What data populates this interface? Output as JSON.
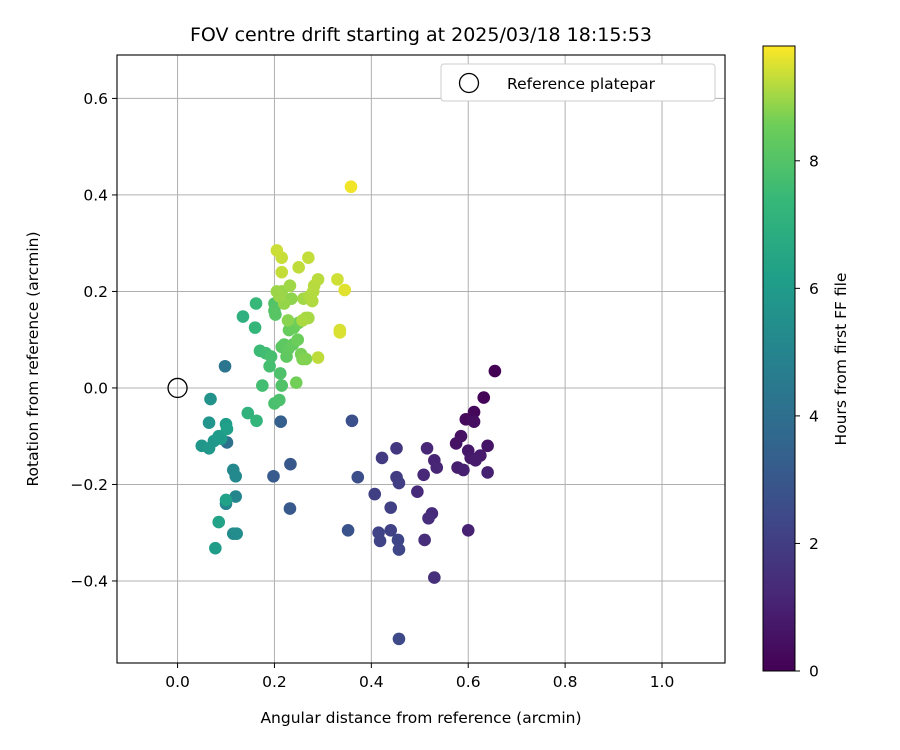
{
  "chart_data": {
    "type": "scatter",
    "title": "FOV centre drift starting at 2025/03/18 18:15:53",
    "xlabel": "Angular distance from reference (arcmin)",
    "ylabel": "Rotation from reference (arcmin)",
    "xlim": [
      -0.125,
      1.13
    ],
    "ylim": [
      -0.57,
      0.69
    ],
    "xticks": [
      0.0,
      0.2,
      0.4,
      0.6,
      0.8,
      1.0
    ],
    "xtick_labels": [
      "0.0",
      "0.2",
      "0.4",
      "0.6",
      "0.8",
      "1.0"
    ],
    "yticks": [
      -0.4,
      -0.2,
      0.0,
      0.2,
      0.4,
      0.6
    ],
    "ytick_labels": [
      "−0.4",
      "−0.2",
      "0.0",
      "0.2",
      "0.4",
      "0.6"
    ],
    "grid": true,
    "legend": {
      "position": "top-right",
      "entries": [
        "Reference platepar"
      ]
    },
    "reference_point": {
      "x": 0.0,
      "y": 0.0
    },
    "colorbar": {
      "label": "Hours from first FF file",
      "colormap": "viridis",
      "range": [
        0,
        9.8
      ],
      "ticks": [
        0,
        2,
        4,
        6,
        8
      ],
      "tick_labels": [
        "0",
        "2",
        "4",
        "6",
        "8"
      ]
    },
    "points": [
      {
        "x": 0.655,
        "y": 0.035,
        "h": 0.0
      },
      {
        "x": 0.632,
        "y": -0.02,
        "h": 0.1
      },
      {
        "x": 0.612,
        "y": -0.05,
        "h": 0.2
      },
      {
        "x": 0.595,
        "y": -0.065,
        "h": 0.3
      },
      {
        "x": 0.612,
        "y": -0.07,
        "h": 0.4
      },
      {
        "x": 0.585,
        "y": -0.1,
        "h": 0.5
      },
      {
        "x": 0.575,
        "y": -0.115,
        "h": 0.55
      },
      {
        "x": 0.64,
        "y": -0.12,
        "h": 0.6
      },
      {
        "x": 0.6,
        "y": -0.13,
        "h": 0.7
      },
      {
        "x": 0.605,
        "y": -0.145,
        "h": 0.75
      },
      {
        "x": 0.625,
        "y": -0.14,
        "h": 0.8
      },
      {
        "x": 0.615,
        "y": -0.15,
        "h": 0.85
      },
      {
        "x": 0.578,
        "y": -0.165,
        "h": 0.9
      },
      {
        "x": 0.59,
        "y": -0.17,
        "h": 0.95
      },
      {
        "x": 0.64,
        "y": -0.175,
        "h": 1.0
      },
      {
        "x": 0.6,
        "y": -0.295,
        "h": 1.05
      },
      {
        "x": 0.53,
        "y": -0.15,
        "h": 1.1
      },
      {
        "x": 0.535,
        "y": -0.165,
        "h": 1.15
      },
      {
        "x": 0.515,
        "y": -0.125,
        "h": 1.2
      },
      {
        "x": 0.508,
        "y": -0.18,
        "h": 1.25
      },
      {
        "x": 0.495,
        "y": -0.215,
        "h": 1.3
      },
      {
        "x": 0.525,
        "y": -0.26,
        "h": 1.35
      },
      {
        "x": 0.518,
        "y": -0.27,
        "h": 1.4
      },
      {
        "x": 0.51,
        "y": -0.315,
        "h": 1.45
      },
      {
        "x": 0.53,
        "y": -0.393,
        "h": 1.5
      },
      {
        "x": 0.452,
        "y": -0.125,
        "h": 1.8
      },
      {
        "x": 0.422,
        "y": -0.145,
        "h": 1.9
      },
      {
        "x": 0.452,
        "y": -0.185,
        "h": 1.95
      },
      {
        "x": 0.457,
        "y": -0.197,
        "h": 2.0
      },
      {
        "x": 0.407,
        "y": -0.22,
        "h": 2.05
      },
      {
        "x": 0.44,
        "y": -0.248,
        "h": 2.1
      },
      {
        "x": 0.44,
        "y": -0.295,
        "h": 2.15
      },
      {
        "x": 0.415,
        "y": -0.3,
        "h": 2.2
      },
      {
        "x": 0.418,
        "y": -0.317,
        "h": 2.25
      },
      {
        "x": 0.455,
        "y": -0.315,
        "h": 2.3
      },
      {
        "x": 0.457,
        "y": -0.335,
        "h": 2.35
      },
      {
        "x": 0.457,
        "y": -0.52,
        "h": 2.4
      },
      {
        "x": 0.372,
        "y": -0.185,
        "h": 2.6
      },
      {
        "x": 0.36,
        "y": -0.068,
        "h": 2.7
      },
      {
        "x": 0.352,
        "y": -0.295,
        "h": 2.8
      },
      {
        "x": 0.233,
        "y": -0.158,
        "h": 3.0
      },
      {
        "x": 0.232,
        "y": -0.25,
        "h": 3.05
      },
      {
        "x": 0.198,
        "y": -0.183,
        "h": 3.15
      },
      {
        "x": 0.213,
        "y": -0.07,
        "h": 3.3
      },
      {
        "x": 0.102,
        "y": -0.113,
        "h": 4.1
      },
      {
        "x": 0.098,
        "y": 0.045,
        "h": 4.3
      },
      {
        "x": 0.1,
        "y": -0.24,
        "h": 5.0
      },
      {
        "x": 0.12,
        "y": -0.225,
        "h": 5.05
      },
      {
        "x": 0.115,
        "y": -0.17,
        "h": 5.15
      },
      {
        "x": 0.12,
        "y": -0.183,
        "h": 5.2
      },
      {
        "x": 0.115,
        "y": -0.302,
        "h": 5.3
      },
      {
        "x": 0.122,
        "y": -0.302,
        "h": 5.35
      },
      {
        "x": 0.068,
        "y": -0.023,
        "h": 5.6
      },
      {
        "x": 0.065,
        "y": -0.072,
        "h": 5.7
      },
      {
        "x": 0.05,
        "y": -0.12,
        "h": 5.8
      },
      {
        "x": 0.065,
        "y": -0.125,
        "h": 5.85
      },
      {
        "x": 0.075,
        "y": -0.11,
        "h": 5.9
      },
      {
        "x": 0.085,
        "y": -0.1,
        "h": 6.0
      },
      {
        "x": 0.09,
        "y": -0.105,
        "h": 6.05
      },
      {
        "x": 0.1,
        "y": -0.075,
        "h": 6.1
      },
      {
        "x": 0.102,
        "y": -0.085,
        "h": 6.2
      },
      {
        "x": 0.1,
        "y": -0.232,
        "h": 6.25
      },
      {
        "x": 0.085,
        "y": -0.278,
        "h": 6.3
      },
      {
        "x": 0.078,
        "y": -0.332,
        "h": 6.1
      },
      {
        "x": 0.135,
        "y": 0.148,
        "h": 7.0
      },
      {
        "x": 0.145,
        "y": -0.052,
        "h": 7.1
      },
      {
        "x": 0.163,
        "y": -0.068,
        "h": 7.2
      },
      {
        "x": 0.16,
        "y": 0.125,
        "h": 7.3
      },
      {
        "x": 0.162,
        "y": 0.175,
        "h": 7.4
      },
      {
        "x": 0.17,
        "y": 0.077,
        "h": 7.5
      },
      {
        "x": 0.182,
        "y": 0.072,
        "h": 7.6
      },
      {
        "x": 0.175,
        "y": 0.005,
        "h": 7.65
      },
      {
        "x": 0.19,
        "y": 0.045,
        "h": 7.7
      },
      {
        "x": 0.193,
        "y": 0.065,
        "h": 7.75
      },
      {
        "x": 0.2,
        "y": -0.032,
        "h": 7.8
      },
      {
        "x": 0.21,
        "y": -0.025,
        "h": 7.85
      },
      {
        "x": 0.212,
        "y": 0.03,
        "h": 7.9
      },
      {
        "x": 0.215,
        "y": 0.005,
        "h": 7.95
      },
      {
        "x": 0.2,
        "y": 0.175,
        "h": 8.0
      },
      {
        "x": 0.2,
        "y": 0.16,
        "h": 8.05
      },
      {
        "x": 0.202,
        "y": 0.152,
        "h": 8.1
      },
      {
        "x": 0.215,
        "y": 0.085,
        "h": 8.15
      },
      {
        "x": 0.22,
        "y": 0.09,
        "h": 8.2
      },
      {
        "x": 0.225,
        "y": 0.065,
        "h": 8.25
      },
      {
        "x": 0.228,
        "y": 0.08,
        "h": 8.3
      },
      {
        "x": 0.238,
        "y": 0.09,
        "h": 8.35
      },
      {
        "x": 0.23,
        "y": 0.12,
        "h": 8.4
      },
      {
        "x": 0.24,
        "y": 0.125,
        "h": 8.45
      },
      {
        "x": 0.248,
        "y": 0.1,
        "h": 8.5
      },
      {
        "x": 0.25,
        "y": 0.135,
        "h": 8.55
      },
      {
        "x": 0.245,
        "y": 0.011,
        "h": 8.6
      },
      {
        "x": 0.255,
        "y": 0.07,
        "h": 8.65
      },
      {
        "x": 0.258,
        "y": 0.06,
        "h": 8.7
      },
      {
        "x": 0.265,
        "y": 0.06,
        "h": 8.75
      },
      {
        "x": 0.228,
        "y": 0.14,
        "h": 8.8
      },
      {
        "x": 0.235,
        "y": 0.185,
        "h": 8.85
      },
      {
        "x": 0.22,
        "y": 0.175,
        "h": 8.9
      },
      {
        "x": 0.215,
        "y": 0.2,
        "h": 8.92
      },
      {
        "x": 0.205,
        "y": 0.2,
        "h": 8.95
      },
      {
        "x": 0.21,
        "y": 0.19,
        "h": 8.97
      },
      {
        "x": 0.232,
        "y": 0.212,
        "h": 9.0
      },
      {
        "x": 0.26,
        "y": 0.185,
        "h": 9.02
      },
      {
        "x": 0.265,
        "y": 0.145,
        "h": 9.05
      },
      {
        "x": 0.27,
        "y": 0.145,
        "h": 9.07
      },
      {
        "x": 0.258,
        "y": 0.14,
        "h": 9.1
      },
      {
        "x": 0.272,
        "y": 0.19,
        "h": 9.12
      },
      {
        "x": 0.278,
        "y": 0.18,
        "h": 9.15
      },
      {
        "x": 0.28,
        "y": 0.2,
        "h": 9.17
      },
      {
        "x": 0.282,
        "y": 0.212,
        "h": 9.2
      },
      {
        "x": 0.29,
        "y": 0.225,
        "h": 9.22
      },
      {
        "x": 0.29,
        "y": 0.063,
        "h": 9.25
      },
      {
        "x": 0.25,
        "y": 0.25,
        "h": 9.27
      },
      {
        "x": 0.27,
        "y": 0.27,
        "h": 9.3
      },
      {
        "x": 0.215,
        "y": 0.24,
        "h": 9.32
      },
      {
        "x": 0.215,
        "y": 0.27,
        "h": 9.35
      },
      {
        "x": 0.205,
        "y": 0.285,
        "h": 9.37
      },
      {
        "x": 0.33,
        "y": 0.225,
        "h": 9.4
      },
      {
        "x": 0.335,
        "y": 0.12,
        "h": 9.45
      },
      {
        "x": 0.335,
        "y": 0.115,
        "h": 9.5
      },
      {
        "x": 0.345,
        "y": 0.203,
        "h": 9.55
      },
      {
        "x": 0.358,
        "y": 0.417,
        "h": 9.7
      }
    ]
  }
}
